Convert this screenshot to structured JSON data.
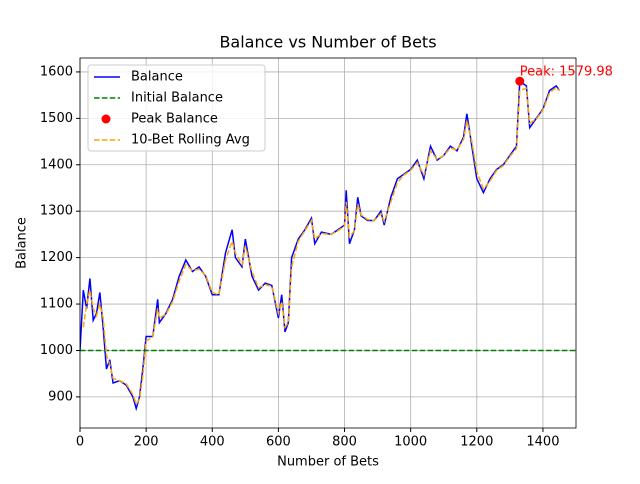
{
  "chart_data": {
    "type": "line",
    "title": "Balance vs Number of Bets",
    "x_label": "Number of Bets",
    "y_label": "Balance",
    "xlim": [
      0,
      1500
    ],
    "ylim": [
      833,
      1630
    ],
    "xticks": [
      0,
      200,
      400,
      600,
      800,
      1000,
      1200,
      1400
    ],
    "yticks": [
      900,
      1000,
      1100,
      1200,
      1300,
      1400,
      1500,
      1600
    ],
    "grid": true,
    "legend": "upper left",
    "annotation": "Peak: 1579.98",
    "series": [
      {
        "name": "Balance",
        "color": "#0000ff",
        "style": "solid",
        "x": [
          0,
          10,
          20,
          30,
          40,
          50,
          60,
          70,
          80,
          90,
          100,
          120,
          140,
          160,
          170,
          180,
          190,
          200,
          220,
          235,
          240,
          260,
          280,
          300,
          320,
          340,
          360,
          380,
          400,
          420,
          440,
          460,
          470,
          490,
          500,
          520,
          540,
          560,
          580,
          600,
          610,
          620,
          630,
          640,
          660,
          680,
          700,
          710,
          730,
          760,
          780,
          800,
          805,
          815,
          830,
          840,
          850,
          870,
          890,
          910,
          920,
          940,
          960,
          980,
          1000,
          1020,
          1040,
          1060,
          1080,
          1100,
          1120,
          1140,
          1160,
          1170,
          1185,
          1200,
          1220,
          1240,
          1260,
          1280,
          1300,
          1320,
          1330,
          1350,
          1360,
          1380,
          1400,
          1420,
          1440,
          1450
        ],
        "values": [
          1000,
          1130,
          1090,
          1155,
          1065,
          1080,
          1125,
          1050,
          960,
          980,
          930,
          935,
          925,
          900,
          875,
          900,
          960,
          1030,
          1030,
          1110,
          1060,
          1080,
          1110,
          1160,
          1195,
          1170,
          1180,
          1160,
          1120,
          1120,
          1210,
          1260,
          1200,
          1180,
          1240,
          1160,
          1130,
          1145,
          1140,
          1070,
          1120,
          1040,
          1060,
          1200,
          1240,
          1260,
          1285,
          1230,
          1255,
          1250,
          1260,
          1270,
          1345,
          1230,
          1260,
          1330,
          1290,
          1280,
          1280,
          1300,
          1270,
          1330,
          1370,
          1380,
          1390,
          1410,
          1370,
          1440,
          1410,
          1420,
          1440,
          1430,
          1460,
          1510,
          1440,
          1370,
          1340,
          1370,
          1390,
          1400,
          1420,
          1440,
          1579.98,
          1570,
          1480,
          1500,
          1520,
          1560,
          1570,
          1560
        ]
      },
      {
        "name": "Initial Balance",
        "color": "#008000",
        "style": "hline",
        "values": [
          1000
        ]
      },
      {
        "name": "Peak Balance",
        "color": "#ff0000",
        "style": "marker",
        "x": [
          1330
        ],
        "values": [
          1579.98
        ]
      },
      {
        "name": "10-Bet Rolling Avg",
        "color": "#ffa500",
        "style": "dashed",
        "x": [
          10,
          20,
          30,
          40,
          50,
          60,
          70,
          80,
          90,
          100,
          120,
          140,
          160,
          170,
          180,
          190,
          200,
          220,
          235,
          240,
          260,
          280,
          300,
          320,
          340,
          360,
          380,
          400,
          420,
          440,
          460,
          470,
          490,
          500,
          520,
          540,
          560,
          580,
          600,
          610,
          620,
          630,
          640,
          660,
          680,
          700,
          710,
          730,
          760,
          780,
          800,
          805,
          815,
          830,
          840,
          850,
          870,
          890,
          910,
          920,
          940,
          960,
          980,
          1000,
          1020,
          1040,
          1060,
          1080,
          1100,
          1120,
          1140,
          1160,
          1170,
          1185,
          1200,
          1220,
          1240,
          1260,
          1280,
          1300,
          1320,
          1330,
          1350,
          1360,
          1380,
          1400,
          1420,
          1440,
          1450
        ],
        "values": [
          1050,
          1100,
          1130,
          1090,
          1075,
          1100,
          1070,
          990,
          970,
          940,
          935,
          928,
          905,
          885,
          895,
          945,
          1020,
          1030,
          1090,
          1070,
          1078,
          1105,
          1150,
          1185,
          1172,
          1175,
          1162,
          1125,
          1120,
          1195,
          1235,
          1210,
          1185,
          1225,
          1170,
          1135,
          1142,
          1138,
          1080,
          1105,
          1050,
          1060,
          1180,
          1235,
          1258,
          1280,
          1240,
          1252,
          1250,
          1258,
          1268,
          1320,
          1245,
          1258,
          1315,
          1292,
          1282,
          1280,
          1295,
          1278,
          1320,
          1362,
          1378,
          1388,
          1405,
          1378,
          1430,
          1412,
          1420,
          1436,
          1432,
          1455,
          1495,
          1450,
          1385,
          1348,
          1365,
          1388,
          1398,
          1418,
          1435,
          1560,
          1565,
          1490,
          1498,
          1518,
          1555,
          1566,
          1560
        ]
      }
    ]
  }
}
